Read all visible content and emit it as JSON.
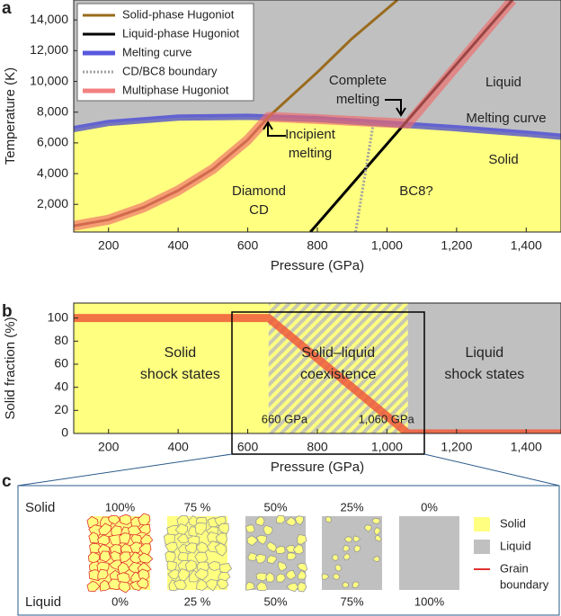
{
  "chart_data": [
    {
      "panel_label": "a",
      "type": "line",
      "xlabel": "Pressure (GPa)",
      "ylabel": "Temperature (K)",
      "xlim": [
        100,
        1500
      ],
      "ylim": [
        200,
        15300
      ],
      "xticks": [
        200,
        400,
        600,
        800,
        {
          "value": 1000,
          "label": "1,000"
        },
        {
          "value": 1200,
          "label": "1,200"
        },
        {
          "value": 1400,
          "label": "1,400"
        }
      ],
      "yticks": [
        {
          "value": 2000,
          "label": "2,000"
        },
        {
          "value": 4000,
          "label": "4,000"
        },
        {
          "value": 6000,
          "label": "6,000"
        },
        {
          "value": 8000,
          "label": "8,000"
        },
        {
          "value": 10000,
          "label": "10,000"
        },
        {
          "value": 12000,
          "label": "12,000"
        },
        {
          "value": 14000,
          "label": "14,000"
        }
      ],
      "region_colors": {
        "below": "#ffff80",
        "above": "#c0c0c0"
      },
      "series": [
        {
          "name": "Solid-phase Hugoniot",
          "color": "#9a6b1e",
          "x": [
            100,
            200,
            300,
            400,
            500,
            600,
            660,
            800,
            900,
            1030
          ],
          "values": [
            600,
            1000,
            1800,
            2900,
            4300,
            6200,
            7700,
            10600,
            12800,
            15300
          ]
        },
        {
          "name": "Liquid-phase Hugoniot",
          "color": "#000000",
          "x": [
            780,
            1360
          ],
          "values": [
            200,
            15300
          ]
        },
        {
          "name": "Melting curve",
          "color": "#3a3ad8",
          "x": [
            100,
            200,
            400,
            600,
            800,
            1000,
            1200,
            1400,
            1500
          ],
          "values": [
            6900,
            7300,
            7650,
            7700,
            7550,
            7250,
            6950,
            6600,
            6400
          ]
        },
        {
          "name": "CD/BC8 boundary",
          "color": "#a0a0a0",
          "x": [
            910,
            960
          ],
          "values": [
            200,
            7150
          ]
        },
        {
          "name": "Multiphase Hugoniot",
          "color": "#f06a6a",
          "x": [
            100,
            200,
            300,
            400,
            500,
            600,
            660,
            800,
            1060,
            1360
          ],
          "values": [
            600,
            1000,
            1800,
            2900,
            4300,
            6200,
            7700,
            7550,
            7250,
            15300
          ]
        }
      ],
      "annotations": [
        {
          "lines": [
            "Liquid"
          ]
        },
        {
          "lines": [
            "Melting curve"
          ],
          "color": "#2a2ae0"
        },
        {
          "lines": [
            "Complete",
            "melting"
          ]
        },
        {
          "lines": [
            "Incipient",
            "melting"
          ]
        },
        {
          "lines": [
            "Solid"
          ]
        },
        {
          "lines": [
            "Diamond",
            "CD"
          ]
        },
        {
          "lines": [
            "BC8?"
          ]
        }
      ]
    },
    {
      "panel_label": "b",
      "type": "line",
      "xlabel": "Pressure (GPa)",
      "ylabel": "Solid fraction (%)",
      "xlim": [
        100,
        1500
      ],
      "ylim": [
        0,
        113
      ],
      "xticks": [
        200,
        400,
        600,
        800,
        {
          "value": 1000,
          "label": "1,000"
        },
        {
          "value": 1200,
          "label": "1,200"
        },
        {
          "value": 1400,
          "label": "1,400"
        }
      ],
      "yticks": [
        0,
        20,
        40,
        60,
        80,
        100
      ],
      "series": [
        {
          "color": "#f05a3a",
          "x": [
            100,
            660,
            1060,
            1500
          ],
          "values": [
            100,
            100,
            0,
            0
          ]
        }
      ],
      "regions": [
        {
          "lines": [
            "Solid",
            "shock states"
          ]
        },
        {
          "lines": [
            "Solid–liquid",
            "coexistence"
          ]
        },
        {
          "lines": [
            "Liquid",
            "shock states"
          ]
        }
      ],
      "annotations": [
        "660 GPa",
        "1,060 GPa"
      ]
    }
  ],
  "panel_c": {
    "label": "c",
    "row_labels": [
      "Solid",
      "Liquid"
    ],
    "solid_labels": [
      "100%",
      "75 %",
      "50%",
      "25%",
      "0%"
    ],
    "liquid_labels": [
      "0%",
      "25 %",
      "50%",
      "75%",
      "100%"
    ],
    "legend": [
      [
        "Solid"
      ],
      [
        "Liquid"
      ],
      [
        "Grain",
        "boundary"
      ]
    ]
  }
}
